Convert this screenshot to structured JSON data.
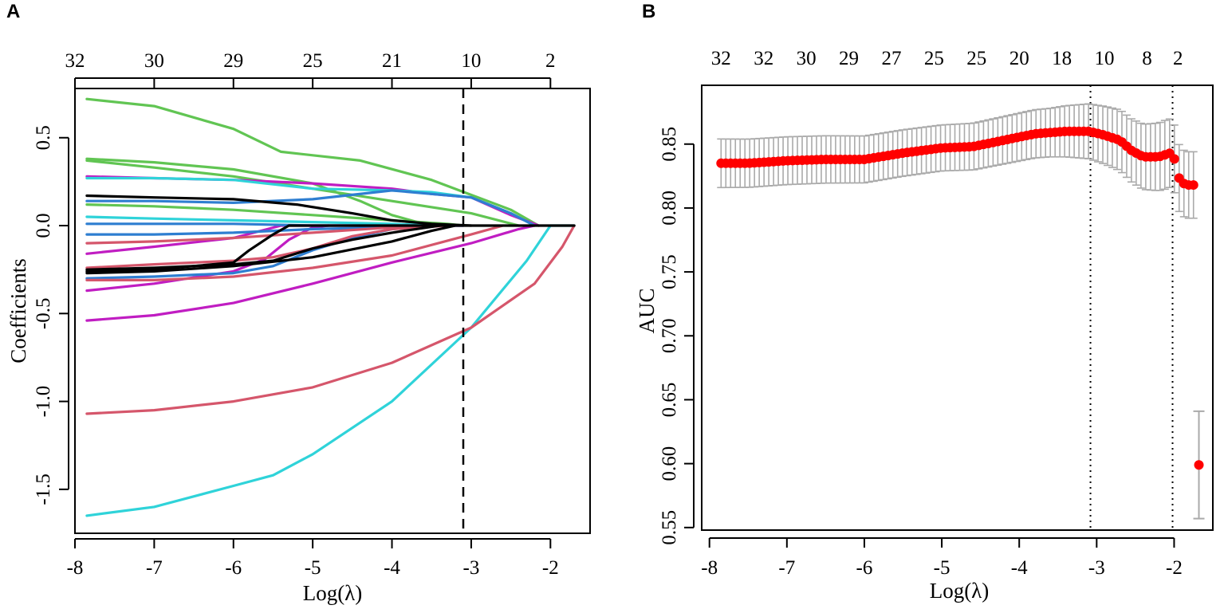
{
  "chart_data": [
    {
      "panel": "A",
      "type": "line",
      "xlabel": "Log(λ)",
      "ylabel": "Coefficients",
      "xlim": [
        -8,
        -1.5
      ],
      "ylim": [
        -1.75,
        0.78
      ],
      "x_ticks": [
        "-8",
        "-7",
        "-6",
        "-5",
        "-4",
        "-3",
        "-2"
      ],
      "x_tick_values": [
        -8,
        -7,
        -6,
        -5,
        -4,
        -3,
        -2
      ],
      "y_ticks": [
        "-1.5",
        "-1.0",
        "-0.5",
        "0.0",
        "0.5"
      ],
      "y_tick_values": [
        -1.5,
        -1.0,
        -0.5,
        0.0,
        0.5
      ],
      "top_ticks": [
        "32",
        "30",
        "29",
        "25",
        "21",
        "10",
        "2"
      ],
      "vline": -3.1,
      "colors": {
        "green": "#61c553",
        "magenta": "#c01dc2",
        "cyan": "#2fd3d9",
        "blue": "#2e7ed1",
        "red": "#d5566b",
        "black": "#000000"
      },
      "series": [
        {
          "name": "green-1",
          "color": "green",
          "points": [
            [
              -7.85,
              0.72
            ],
            [
              -7,
              0.68
            ],
            [
              -6,
              0.55
            ],
            [
              -5.4,
              0.42
            ],
            [
              -4.4,
              0.37
            ],
            [
              -3.5,
              0.26
            ],
            [
              -2.5,
              0.09
            ],
            [
              -2.15,
              0
            ]
          ]
        },
        {
          "name": "green-2",
          "color": "green",
          "points": [
            [
              -7.85,
              0.38
            ],
            [
              -7,
              0.36
            ],
            [
              -6,
              0.32
            ],
            [
              -5,
              0.24
            ],
            [
              -4.4,
              0.14
            ],
            [
              -4,
              0.06
            ],
            [
              -3.6,
              0.01
            ],
            [
              -3.3,
              0
            ]
          ]
        },
        {
          "name": "green-3",
          "color": "green",
          "points": [
            [
              -7.85,
              0.37
            ],
            [
              -7,
              0.33
            ],
            [
              -6,
              0.28
            ],
            [
              -5,
              0.21
            ],
            [
              -4,
              0.14
            ],
            [
              -3,
              0.07
            ],
            [
              -2.4,
              0
            ]
          ]
        },
        {
          "name": "green-4",
          "color": "green",
          "points": [
            [
              -7.85,
              0.12
            ],
            [
              -7,
              0.11
            ],
            [
              -6,
              0.09
            ],
            [
              -5,
              0.06
            ],
            [
              -4,
              0.03
            ],
            [
              -3.3,
              0.01
            ],
            [
              -3.1,
              0
            ]
          ]
        },
        {
          "name": "magenta-1",
          "color": "magenta",
          "points": [
            [
              -7.85,
              0.28
            ],
            [
              -7,
              0.27
            ],
            [
              -6,
              0.26
            ],
            [
              -5,
              0.24
            ],
            [
              -4,
              0.21
            ],
            [
              -3.5,
              0.18
            ],
            [
              -3,
              0.16
            ],
            [
              -2.5,
              0.06
            ],
            [
              -2.15,
              0
            ]
          ]
        },
        {
          "name": "magenta-2",
          "color": "magenta",
          "points": [
            [
              -7.85,
              -0.16
            ],
            [
              -7,
              -0.12
            ],
            [
              -6,
              -0.07
            ],
            [
              -5.4,
              0
            ],
            [
              -3.1,
              0
            ]
          ]
        },
        {
          "name": "magenta-3",
          "color": "magenta",
          "points": [
            [
              -7.85,
              -0.37
            ],
            [
              -7,
              -0.33
            ],
            [
              -6,
              -0.26
            ],
            [
              -5.6,
              -0.19
            ],
            [
              -5.3,
              -0.08
            ],
            [
              -5,
              -0.01
            ],
            [
              -4.8,
              0
            ]
          ]
        },
        {
          "name": "magenta-4",
          "color": "magenta",
          "points": [
            [
              -7.85,
              -0.54
            ],
            [
              -7,
              -0.51
            ],
            [
              -6,
              -0.44
            ],
            [
              -5,
              -0.33
            ],
            [
              -4,
              -0.21
            ],
            [
              -3,
              -0.1
            ],
            [
              -2.4,
              -0.02
            ],
            [
              -2.2,
              0
            ]
          ]
        },
        {
          "name": "cyan-1",
          "color": "cyan",
          "points": [
            [
              -7.85,
              -1.65
            ],
            [
              -7,
              -1.6
            ],
            [
              -6,
              -1.48
            ],
            [
              -5.5,
              -1.42
            ],
            [
              -5,
              -1.3
            ],
            [
              -4,
              -1.0
            ],
            [
              -3,
              -0.58
            ],
            [
              -2.3,
              -0.2
            ],
            [
              -2,
              0
            ],
            [
              -1.7,
              0
            ]
          ]
        },
        {
          "name": "cyan-2",
          "color": "cyan",
          "points": [
            [
              -7.85,
              0.27
            ],
            [
              -7,
              0.27
            ],
            [
              -6,
              0.26
            ],
            [
              -5,
              0.21
            ],
            [
              -4,
              0.2
            ],
            [
              -3.5,
              0.19
            ],
            [
              -3,
              0.16
            ],
            [
              -2.5,
              0.07
            ],
            [
              -2.2,
              0
            ]
          ]
        },
        {
          "name": "cyan-3",
          "color": "cyan",
          "points": [
            [
              -7.85,
              0.05
            ],
            [
              -7,
              0.04
            ],
            [
              -6,
              0.03
            ],
            [
              -5,
              0.02
            ],
            [
              -4,
              0.01
            ],
            [
              -3.5,
              0
            ]
          ]
        },
        {
          "name": "blue-1",
          "color": "blue",
          "points": [
            [
              -7.85,
              0.14
            ],
            [
              -7,
              0.14
            ],
            [
              -6,
              0.13
            ],
            [
              -5,
              0.15
            ],
            [
              -4,
              0.2
            ],
            [
              -3.5,
              0.18
            ],
            [
              -3,
              0.16
            ],
            [
              -2.5,
              0.07
            ],
            [
              -2.2,
              0
            ]
          ]
        },
        {
          "name": "blue-2",
          "color": "blue",
          "points": [
            [
              -7.85,
              -0.05
            ],
            [
              -7,
              -0.05
            ],
            [
              -6,
              -0.04
            ],
            [
              -5,
              -0.02
            ],
            [
              -4,
              -0.01
            ],
            [
              -3.6,
              0
            ]
          ]
        },
        {
          "name": "blue-3",
          "color": "blue",
          "points": [
            [
              -7.85,
              -0.3
            ],
            [
              -7,
              -0.29
            ],
            [
              -6,
              -0.27
            ],
            [
              -5.5,
              -0.23
            ],
            [
              -5,
              -0.14
            ],
            [
              -4.5,
              -0.07
            ],
            [
              -4,
              -0.02
            ],
            [
              -3.5,
              0
            ]
          ]
        },
        {
          "name": "blue-4",
          "color": "blue",
          "points": [
            [
              -7.85,
              0.01
            ],
            [
              -7,
              0.01
            ],
            [
              -6,
              0.01
            ],
            [
              -5,
              0
            ],
            [
              -3.1,
              0
            ]
          ]
        },
        {
          "name": "red-1",
          "color": "red",
          "points": [
            [
              -7.85,
              -1.07
            ],
            [
              -7,
              -1.05
            ],
            [
              -6,
              -1.0
            ],
            [
              -5,
              -0.92
            ],
            [
              -4,
              -0.78
            ],
            [
              -3,
              -0.58
            ],
            [
              -2.2,
              -0.33
            ],
            [
              -1.85,
              -0.12
            ],
            [
              -1.7,
              0
            ]
          ]
        },
        {
          "name": "red-2",
          "color": "red",
          "points": [
            [
              -7.85,
              -0.31
            ],
            [
              -7,
              -0.31
            ],
            [
              -6,
              -0.29
            ],
            [
              -5,
              -0.24
            ],
            [
              -4,
              -0.17
            ],
            [
              -3,
              -0.05
            ],
            [
              -2.6,
              0
            ]
          ]
        },
        {
          "name": "red-3",
          "color": "red",
          "points": [
            [
              -7.85,
              -0.1
            ],
            [
              -7,
              -0.09
            ],
            [
              -6,
              -0.07
            ],
            [
              -5,
              -0.04
            ],
            [
              -4,
              -0.01
            ],
            [
              -3.6,
              0
            ]
          ]
        },
        {
          "name": "red-4",
          "color": "red",
          "points": [
            [
              -7.85,
              -0.24
            ],
            [
              -7,
              -0.22
            ],
            [
              -6,
              -0.2
            ],
            [
              -5.5,
              -0.18
            ],
            [
              -5,
              -0.13
            ],
            [
              -4.5,
              -0.06
            ],
            [
              -4,
              -0.02
            ],
            [
              -3.3,
              0
            ]
          ]
        },
        {
          "name": "black-1",
          "color": "black",
          "points": [
            [
              -7.85,
              0.17
            ],
            [
              -7,
              0.16
            ],
            [
              -6,
              0.15
            ],
            [
              -5.2,
              0.12
            ],
            [
              -4.5,
              0.07
            ],
            [
              -4,
              0.03
            ],
            [
              -3.5,
              0.01
            ],
            [
              -3,
              0
            ]
          ]
        },
        {
          "name": "black-2",
          "color": "black",
          "points": [
            [
              -7.85,
              -0.25
            ],
            [
              -7,
              -0.24
            ],
            [
              -6,
              -0.22
            ],
            [
              -5.5,
              -0.2
            ],
            [
              -5,
              -0.13
            ],
            [
              -4.5,
              -0.08
            ],
            [
              -4,
              -0.04
            ],
            [
              -3.4,
              0
            ]
          ]
        },
        {
          "name": "black-3",
          "color": "black",
          "points": [
            [
              -7.85,
              -0.27
            ],
            [
              -7,
              -0.26
            ],
            [
              -6,
              -0.23
            ],
            [
              -5,
              -0.18
            ],
            [
              -4,
              -0.09
            ],
            [
              -3.5,
              -0.03
            ],
            [
              -3.2,
              0
            ]
          ]
        },
        {
          "name": "black-4",
          "color": "black",
          "points": [
            [
              -7.85,
              -0.26
            ],
            [
              -7,
              -0.25
            ],
            [
              -6,
              -0.21
            ],
            [
              -5.8,
              -0.14
            ],
            [
              -5.5,
              -0.05
            ],
            [
              -5.3,
              0
            ],
            [
              -4,
              0
            ],
            [
              -3,
              0
            ],
            [
              -2,
              0
            ],
            [
              -1.7,
              0
            ]
          ]
        }
      ]
    },
    {
      "panel": "B",
      "type": "scatter",
      "xlabel": "Log(λ)",
      "ylabel": "AUC",
      "xlim": [
        -8.1,
        -1.5
      ],
      "ylim": [
        0.548,
        0.896
      ],
      "x_ticks": [
        "-8",
        "-7",
        "-6",
        "-5",
        "-4",
        "-3",
        "-2"
      ],
      "x_tick_values": [
        -8,
        -7,
        -6,
        -5,
        -4,
        -3,
        -2
      ],
      "y_ticks": [
        "0.55",
        "0.60",
        "0.65",
        "0.70",
        "0.75",
        "0.80",
        "0.85"
      ],
      "y_tick_values": [
        0.55,
        0.6,
        0.65,
        0.7,
        0.75,
        0.8,
        0.85
      ],
      "top_ticks": [
        "32",
        "32",
        "30",
        "29",
        "27",
        "25",
        "25",
        "20",
        "18",
        "10",
        "8",
        "2"
      ],
      "top_tick_values": [
        -7.85,
        -7.3,
        -6.75,
        -6.2,
        -5.65,
        -5.1,
        -4.55,
        -4.0,
        -3.45,
        -2.9,
        -2.35,
        -1.95
      ],
      "vlines": [
        -3.08,
        -2.02
      ],
      "point_color": "#ff0000",
      "error_color": "#aaaaaa",
      "curve_knots": [
        [
          -7.85,
          0.835
        ],
        [
          -7.5,
          0.835
        ],
        [
          -7,
          0.837
        ],
        [
          -6.5,
          0.838
        ],
        [
          -6,
          0.838
        ],
        [
          -5.5,
          0.843
        ],
        [
          -5,
          0.847
        ],
        [
          -4.6,
          0.848
        ],
        [
          -4.2,
          0.853
        ],
        [
          -3.8,
          0.858
        ],
        [
          -3.4,
          0.86
        ],
        [
          -3.1,
          0.86
        ],
        [
          -2.9,
          0.857
        ],
        [
          -2.7,
          0.853
        ],
        [
          -2.55,
          0.845
        ],
        [
          -2.4,
          0.84
        ],
        [
          -2.2,
          0.84
        ],
        [
          -2.05,
          0.843
        ],
        [
          -1.98,
          0.837
        ],
        [
          -1.93,
          0.822
        ],
        [
          -1.85,
          0.818
        ],
        [
          -1.75,
          0.818
        ]
      ],
      "n_points": 100,
      "half_width_knots": [
        [
          -7.85,
          0.019
        ],
        [
          -5,
          0.018
        ],
        [
          -3.6,
          0.019
        ],
        [
          -3,
          0.022
        ],
        [
          -2.5,
          0.025
        ],
        [
          -2.1,
          0.027
        ],
        [
          -1.9,
          0.026
        ],
        [
          -1.75,
          0.026
        ]
      ],
      "outlier": {
        "x": -1.68,
        "y": 0.599,
        "lo": 0.557,
        "hi": 0.641
      }
    }
  ]
}
